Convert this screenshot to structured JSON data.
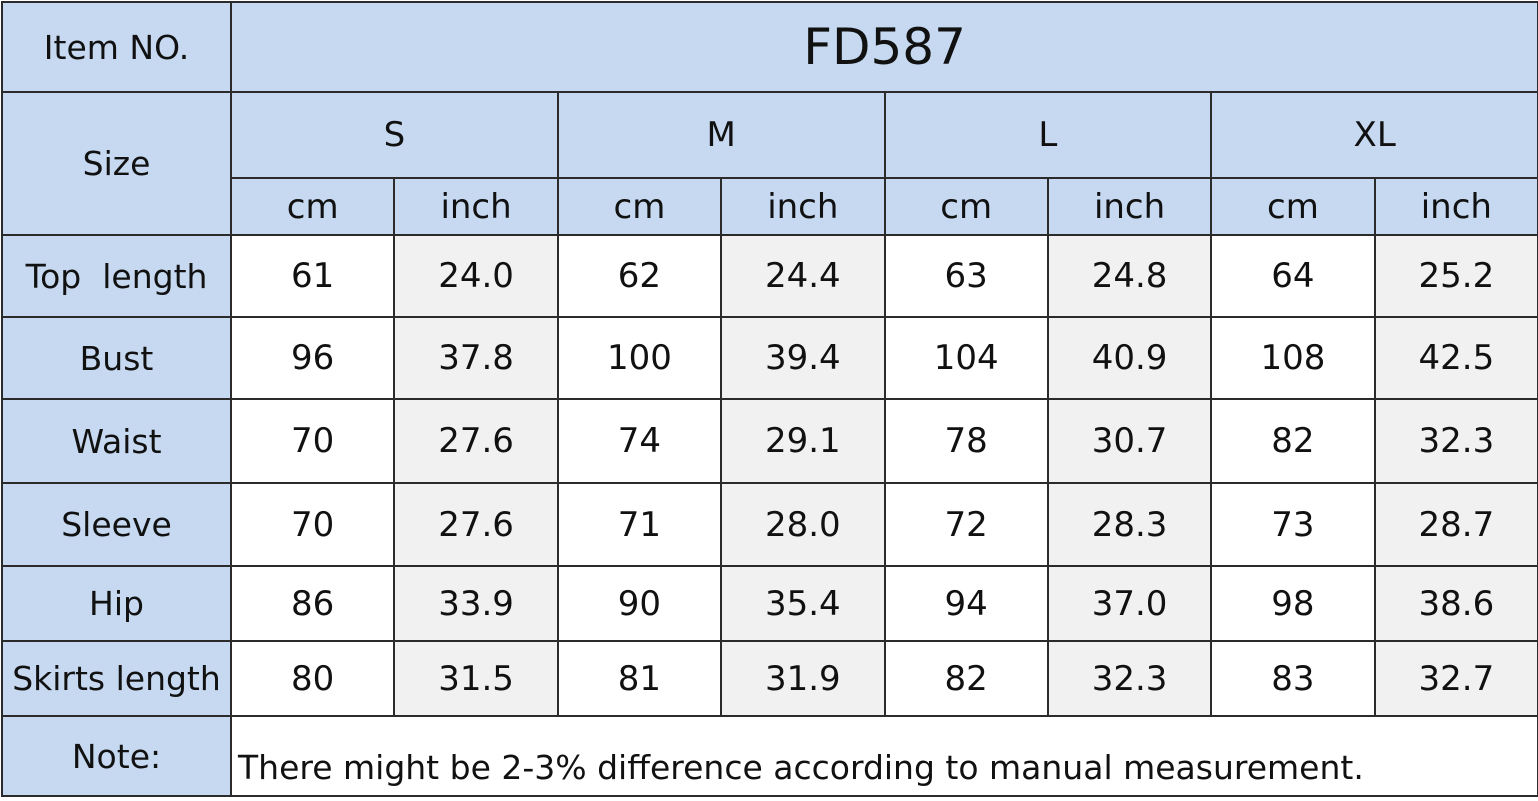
{
  "table": {
    "item_label": "Item NO.",
    "item_value": "FD587",
    "size_label": "Size",
    "sizes": [
      "S",
      "M",
      "L",
      "XL"
    ],
    "units": [
      "cm",
      "inch"
    ],
    "rows": [
      {
        "label": "Top  length",
        "values": [
          "61",
          "24.0",
          "62",
          "24.4",
          "63",
          "24.8",
          "64",
          "25.2"
        ]
      },
      {
        "label": "Bust",
        "values": [
          "96",
          "37.8",
          "100",
          "39.4",
          "104",
          "40.9",
          "108",
          "42.5"
        ]
      },
      {
        "label": "Waist",
        "values": [
          "70",
          "27.6",
          "74",
          "29.1",
          "78",
          "30.7",
          "82",
          "32.3"
        ]
      },
      {
        "label": "Sleeve",
        "values": [
          "70",
          "27.6",
          "71",
          "28.0",
          "72",
          "28.3",
          "73",
          "28.7"
        ]
      },
      {
        "label": "Hip",
        "values": [
          "86",
          "33.9",
          "90",
          "35.4",
          "94",
          "37.0",
          "98",
          "38.6"
        ]
      },
      {
        "label": "Skirts length",
        "values": [
          "80",
          "31.5",
          "81",
          "31.9",
          "82",
          "32.3",
          "83",
          "32.7"
        ]
      }
    ],
    "note_label": "Note:",
    "note": "There might be 2-3% difference according to manual measurement."
  }
}
